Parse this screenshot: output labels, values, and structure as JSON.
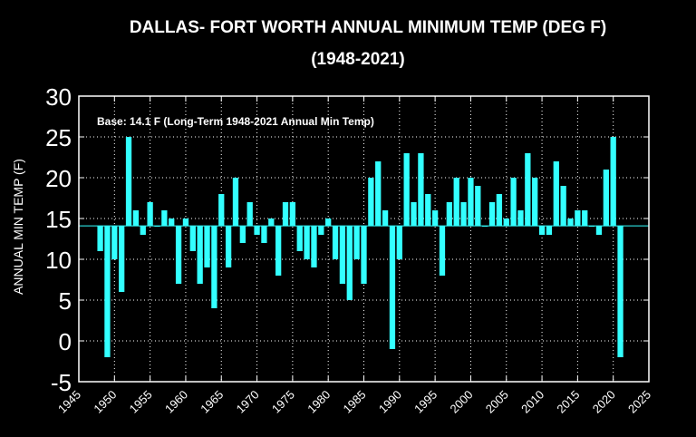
{
  "chart_data": {
    "type": "bar",
    "title": "DALLAS- FORT WORTH ANNUAL MINIMUM TEMP (DEG F)",
    "subtitle": "(1948-2021)",
    "xlabel": "",
    "ylabel": "ANNUAL MIN TEMP (F)",
    "annotation": "Base: 14.1 F (Long-Term 1948-2021 Annual Min Temp)",
    "base": 14.1,
    "xlim": [
      1945,
      2025
    ],
    "ylim": [
      -5,
      30
    ],
    "x_ticks": [
      "1945",
      "1950",
      "1955",
      "1960",
      "1965",
      "1970",
      "1975",
      "1980",
      "1985",
      "1990",
      "1995",
      "2000",
      "2005",
      "2010",
      "2015",
      "2020",
      "2025"
    ],
    "y_ticks": [
      "-5",
      "0",
      "5",
      "10",
      "15",
      "20",
      "25",
      "30"
    ],
    "grid": true,
    "colors": {
      "bar": "#33ffff",
      "background": "#000000",
      "text": "#ffffff",
      "grid": "#ffffff"
    },
    "years": [
      1948,
      1949,
      1950,
      1951,
      1952,
      1953,
      1954,
      1955,
      1956,
      1957,
      1958,
      1959,
      1960,
      1961,
      1962,
      1963,
      1964,
      1965,
      1966,
      1967,
      1968,
      1969,
      1970,
      1971,
      1972,
      1973,
      1974,
      1975,
      1976,
      1977,
      1978,
      1979,
      1980,
      1981,
      1982,
      1983,
      1984,
      1985,
      1986,
      1987,
      1988,
      1989,
      1990,
      1991,
      1992,
      1993,
      1994,
      1995,
      1996,
      1997,
      1998,
      1999,
      2000,
      2001,
      2002,
      2003,
      2004,
      2005,
      2006,
      2007,
      2008,
      2009,
      2010,
      2011,
      2012,
      2013,
      2014,
      2015,
      2016,
      2017,
      2018,
      2019,
      2020,
      2021
    ],
    "values": [
      11,
      -2,
      10,
      6,
      25,
      16,
      13,
      17,
      14,
      16,
      15,
      7,
      15,
      11,
      7,
      9,
      4,
      18,
      9,
      20,
      12,
      17,
      13,
      12,
      15,
      8,
      17,
      17,
      11,
      10,
      9,
      13,
      15,
      10,
      7,
      5,
      10,
      7,
      20,
      22,
      16,
      -1,
      10,
      23,
      17,
      23,
      18,
      16,
      8,
      17,
      20,
      17,
      20,
      19,
      14,
      17,
      18,
      15,
      20,
      16,
      23,
      20,
      13,
      13,
      22,
      19,
      15,
      16,
      16,
      14,
      13,
      21,
      25,
      -2
    ]
  }
}
